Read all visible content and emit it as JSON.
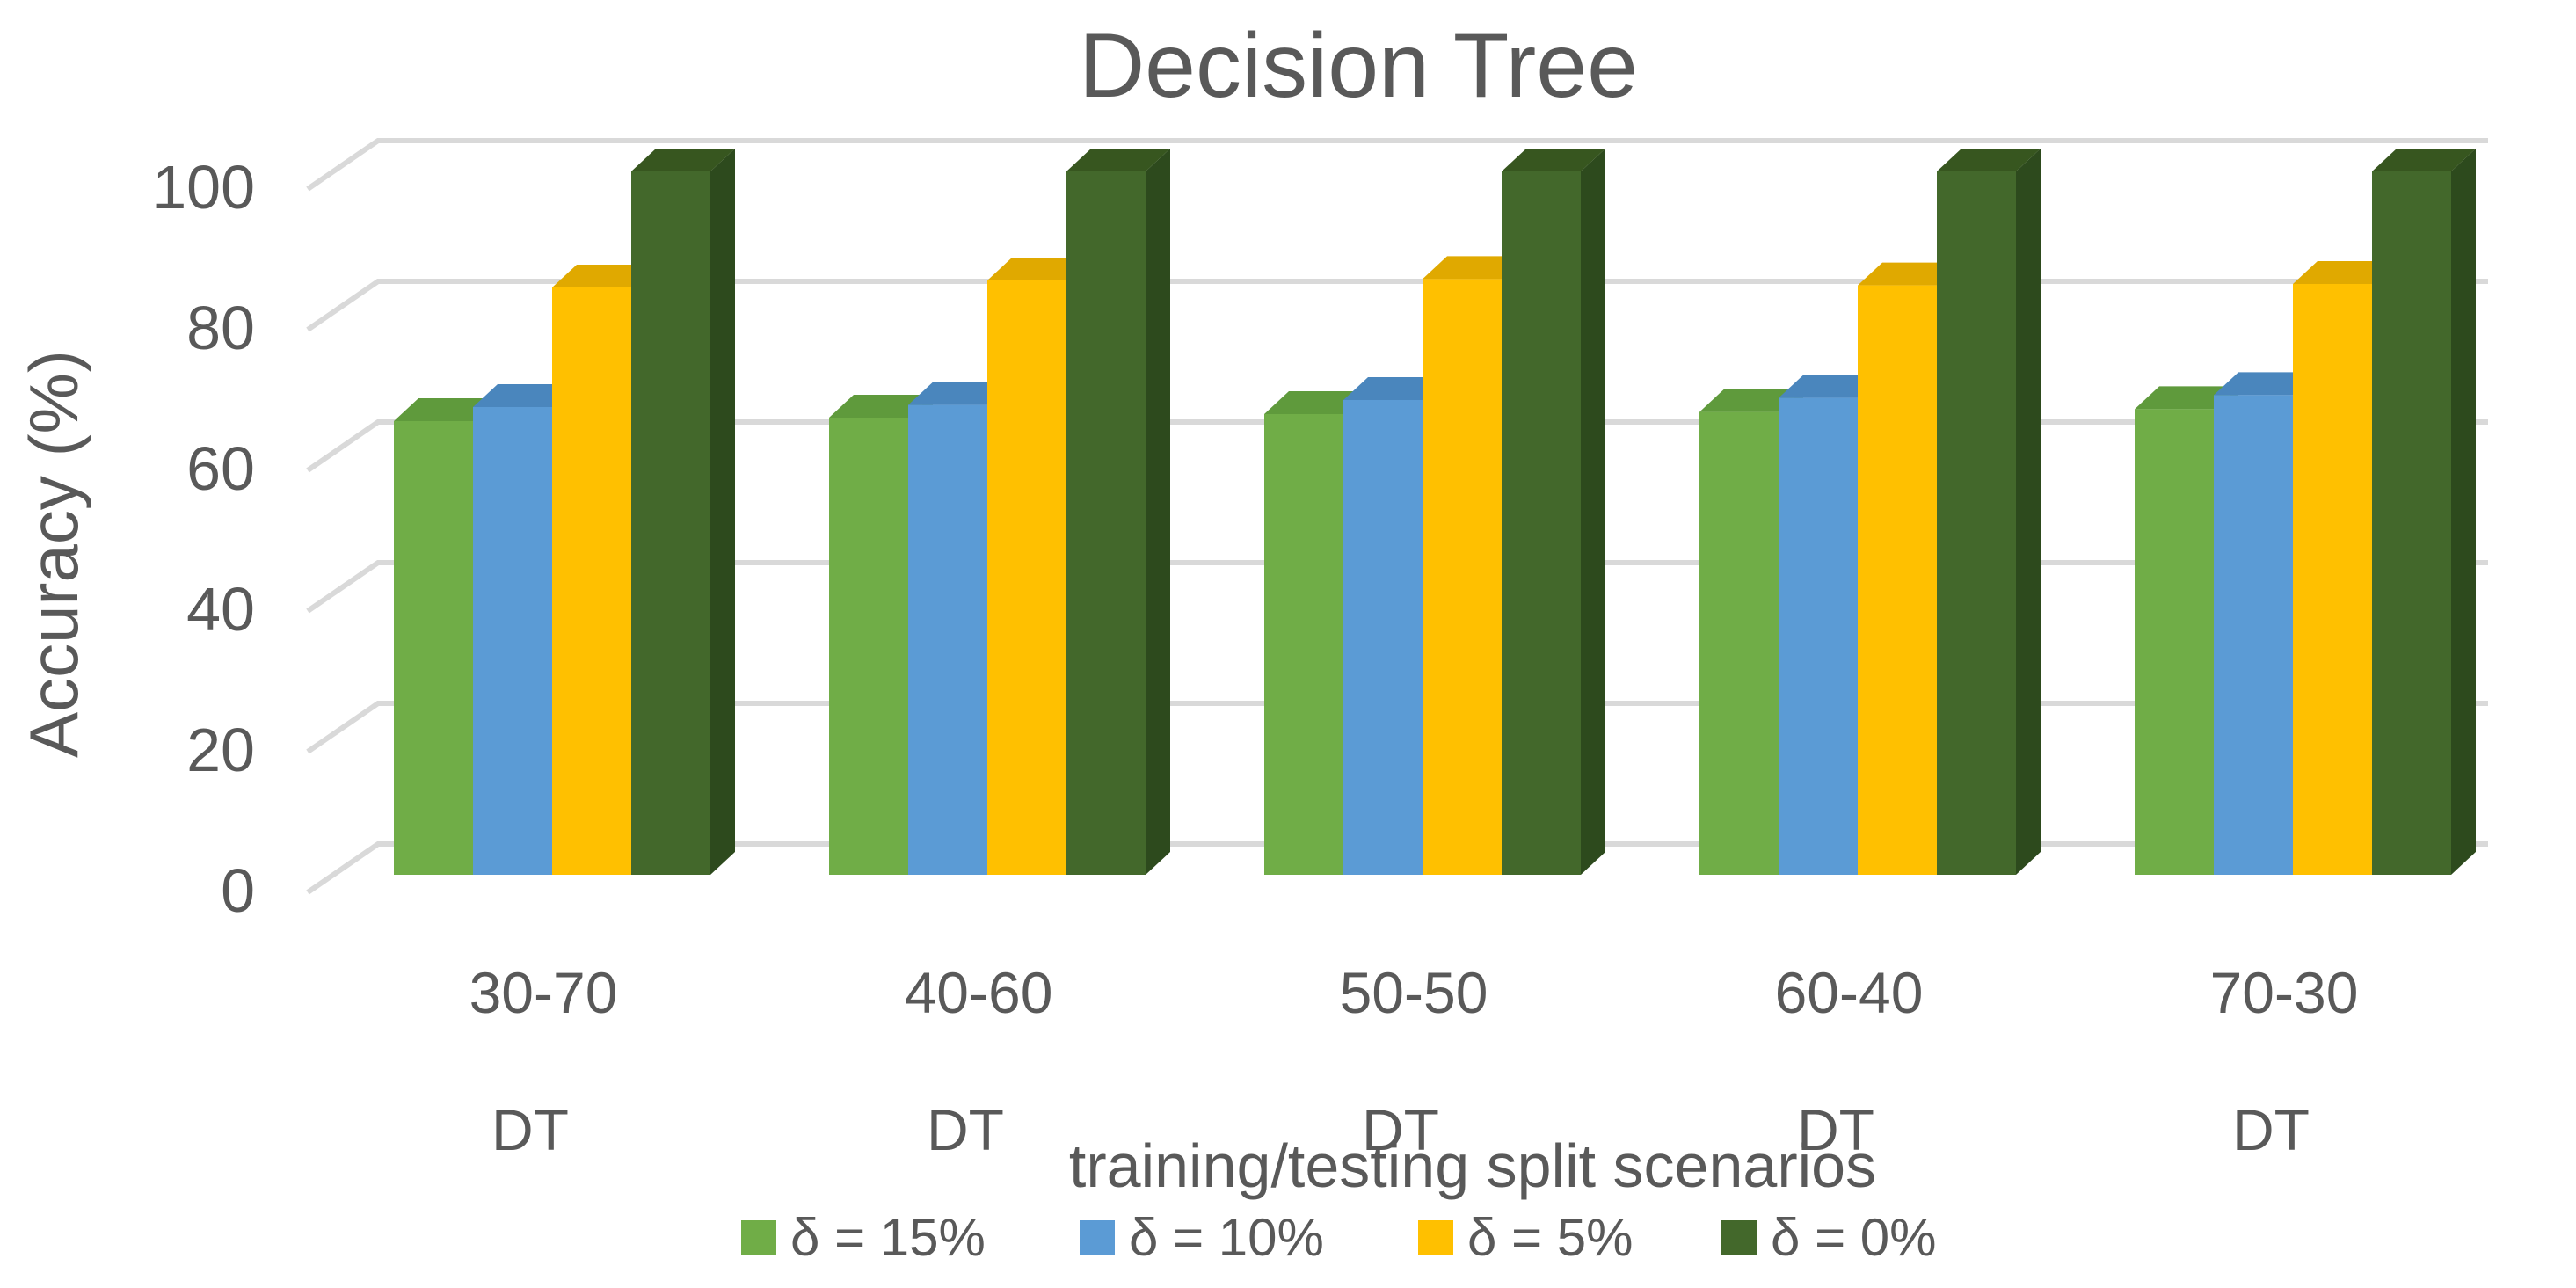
{
  "chart_data": {
    "type": "bar",
    "title": "Decision Tree",
    "xlabel": "training/testing split scenarios",
    "ylabel": "Accuracy (%)",
    "ylim": [
      0,
      100
    ],
    "yticks": [
      "0",
      "20",
      "40",
      "60",
      "80",
      "100"
    ],
    "categories": [
      "30-70",
      "40-60",
      "50-50",
      "60-40",
      "70-30"
    ],
    "sub_categories": [
      "DT",
      "DT",
      "DT",
      "DT",
      "DT"
    ],
    "series": [
      {
        "name": "δ = 15%",
        "color": "#70ad47",
        "side": "#507c33",
        "top": "#5f9a3c",
        "values": [
          64.5,
          65,
          65.5,
          65.8,
          66.2
        ]
      },
      {
        "name": "δ = 10%",
        "color": "#5b9bd5",
        "side": "#3f73a2",
        "top": "#4a86bd",
        "values": [
          66.5,
          66.8,
          67.5,
          67.8,
          68.2
        ]
      },
      {
        "name": "δ = 5%",
        "color": "#ffc000",
        "side": "#c69500",
        "top": "#e0a900",
        "values": [
          83.5,
          84.5,
          84.7,
          83.8,
          84
        ]
      },
      {
        "name": "δ = 0%",
        "color": "#43682b",
        "side": "#2d4a1d",
        "top": "#37561f",
        "values": [
          100,
          100,
          100,
          100,
          100
        ]
      }
    ],
    "grid": true,
    "legend": "bottom"
  }
}
